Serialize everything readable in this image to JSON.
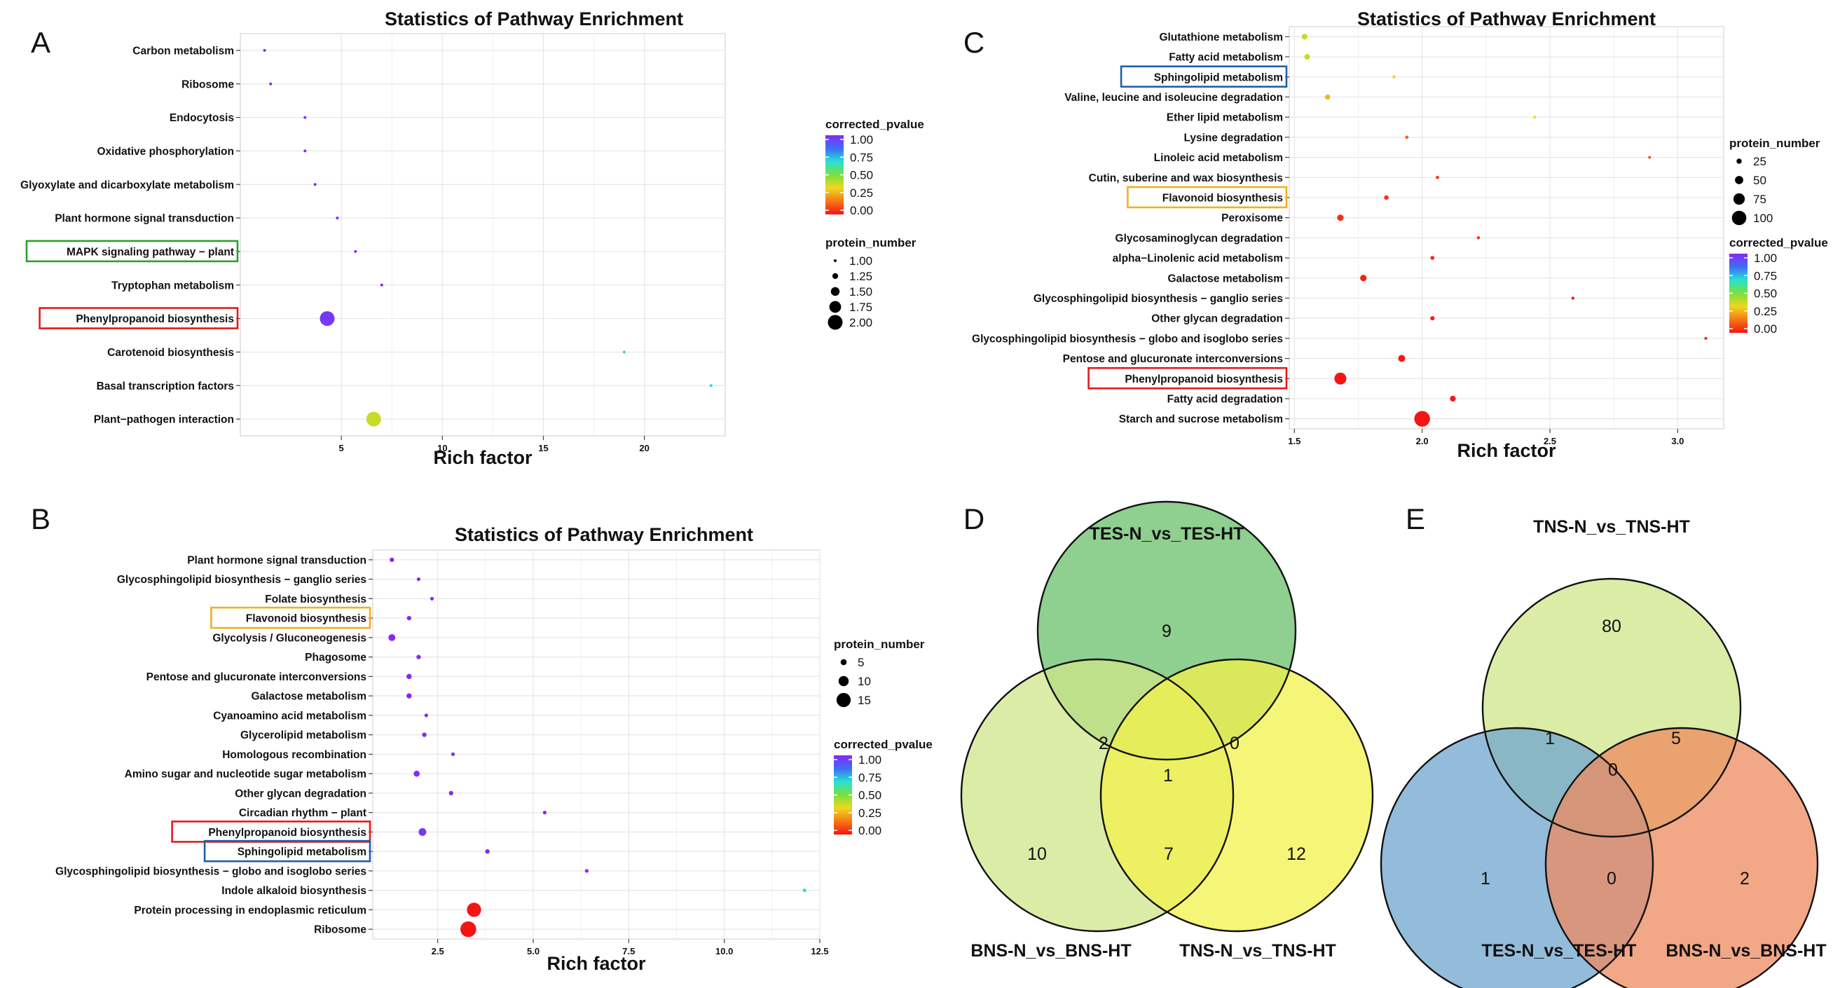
{
  "colors": {
    "grid": "#e6e6e6",
    "panel_border": "#cccccc",
    "green_box": "#2ca02c",
    "red_box": "#e31a1c",
    "orange_box": "#f2b01e",
    "blue_box": "#1f5fa8"
  },
  "chart_data": [
    {
      "id": "A",
      "panel_letter": "A",
      "type": "scatter",
      "title": "Statistics of Pathway Enrichment",
      "xlabel": "Rich factor",
      "xlim": [
        0,
        24
      ],
      "xticks": [
        5,
        10,
        15,
        20
      ],
      "categories": [
        "Carbon metabolism",
        "Ribosome",
        "Endocytosis",
        "Oxidative phosphorylation",
        "Glyoxylate and dicarboxylate metabolism",
        "Plant hormone signal transduction",
        "MAPK signaling pathway − plant",
        "Tryptophan metabolism",
        "Phenylpropanoid biosynthesis",
        "Carotenoid biosynthesis",
        "Basal transcription factors",
        "Plant−pathogen interaction"
      ],
      "points": [
        {
          "pathway": "Carbon metabolism",
          "rich_factor": 1.2,
          "protein_number": 1,
          "corrected_pvalue": 1.0
        },
        {
          "pathway": "Ribosome",
          "rich_factor": 1.5,
          "protein_number": 1,
          "corrected_pvalue": 1.0
        },
        {
          "pathway": "Endocytosis",
          "rich_factor": 3.2,
          "protein_number": 1,
          "corrected_pvalue": 1.0
        },
        {
          "pathway": "Oxidative phosphorylation",
          "rich_factor": 3.2,
          "protein_number": 1,
          "corrected_pvalue": 1.0
        },
        {
          "pathway": "Glyoxylate and dicarboxylate metabolism",
          "rich_factor": 3.7,
          "protein_number": 1,
          "corrected_pvalue": 1.0
        },
        {
          "pathway": "Plant hormone signal transduction",
          "rich_factor": 4.8,
          "protein_number": 1,
          "corrected_pvalue": 1.0
        },
        {
          "pathway": "MAPK signaling pathway − plant",
          "rich_factor": 5.7,
          "protein_number": 1,
          "corrected_pvalue": 1.0
        },
        {
          "pathway": "Tryptophan metabolism",
          "rich_factor": 7.0,
          "protein_number": 1,
          "corrected_pvalue": 1.0
        },
        {
          "pathway": "Phenylpropanoid biosynthesis",
          "rich_factor": 4.3,
          "protein_number": 2,
          "corrected_pvalue": 0.95
        },
        {
          "pathway": "Carotenoid biosynthesis",
          "rich_factor": 19.0,
          "protein_number": 1,
          "corrected_pvalue": 0.62
        },
        {
          "pathway": "Basal transcription factors",
          "rich_factor": 23.3,
          "protein_number": 1,
          "corrected_pvalue": 0.62
        },
        {
          "pathway": "Plant−pathogen interaction",
          "rich_factor": 6.6,
          "protein_number": 2,
          "corrected_pvalue": 0.35
        }
      ],
      "highlighted": [
        {
          "pathway": "MAPK signaling pathway − plant",
          "box_color": "green"
        },
        {
          "pathway": "Phenylpropanoid biosynthesis",
          "box_color": "red"
        }
      ],
      "size_legend": {
        "title": "protein_number",
        "values": [
          1.0,
          1.25,
          1.5,
          1.75,
          2.0
        ],
        "labels": [
          "1.00",
          "1.25",
          "1.50",
          "1.75",
          "2.00"
        ]
      },
      "color_legend": {
        "title": "corrected_pvalue",
        "ticks": [
          "1.00",
          "0.75",
          "0.50",
          "0.25",
          "0.00"
        ]
      }
    },
    {
      "id": "B",
      "panel_letter": "B",
      "type": "scatter",
      "title": "Statistics of Pathway Enrichment",
      "xlabel": "Rich factor",
      "xlim": [
        0.8,
        12.5
      ],
      "xticks": [
        2.5,
        5.0,
        7.5,
        10.0,
        12.5
      ],
      "tick_labels": [
        "2.5",
        "5.0",
        "7.5",
        "10.0",
        "12.5"
      ],
      "categories": [
        "Plant hormone signal transduction",
        "Glycosphingolipid biosynthesis − ganglio series",
        "Folate biosynthesis",
        "Flavonoid biosynthesis",
        "Glycolysis / Gluconeogenesis",
        "Phagosome",
        "Pentose and glucuronate interconversions",
        "Galactose metabolism",
        "Cyanoamino acid metabolism",
        "Glycerolipid metabolism",
        "Homologous recombination",
        "Amino sugar and nucleotide sugar metabolism",
        "Other glycan degradation",
        "Circadian rhythm − plant",
        "Phenylpropanoid biosynthesis",
        "Sphingolipid metabolism",
        "Glycosphingolipid biosynthesis − globo and isoglobo series",
        "Indole alkaloid biosynthesis",
        "Protein processing in endoplasmic reticulum",
        "Ribosome"
      ],
      "points": [
        {
          "pathway": "Plant hormone signal transduction",
          "rich_factor": 1.3,
          "protein_number": 3,
          "corrected_pvalue": 1.0
        },
        {
          "pathway": "Glycosphingolipid biosynthesis − ganglio series",
          "rich_factor": 2.0,
          "protein_number": 2,
          "corrected_pvalue": 1.0
        },
        {
          "pathway": "Folate biosynthesis",
          "rich_factor": 2.35,
          "protein_number": 2,
          "corrected_pvalue": 1.0
        },
        {
          "pathway": "Flavonoid biosynthesis",
          "rich_factor": 1.75,
          "protein_number": 3,
          "corrected_pvalue": 1.0
        },
        {
          "pathway": "Glycolysis / Gluconeogenesis",
          "rich_factor": 1.3,
          "protein_number": 6,
          "corrected_pvalue": 1.0
        },
        {
          "pathway": "Phagosome",
          "rich_factor": 2.0,
          "protein_number": 3,
          "corrected_pvalue": 1.0
        },
        {
          "pathway": "Pentose and glucuronate interconversions",
          "rich_factor": 1.75,
          "protein_number": 4,
          "corrected_pvalue": 1.0
        },
        {
          "pathway": "Galactose metabolism",
          "rich_factor": 1.75,
          "protein_number": 4,
          "corrected_pvalue": 1.0
        },
        {
          "pathway": "Cyanoamino acid metabolism",
          "rich_factor": 2.2,
          "protein_number": 2,
          "corrected_pvalue": 1.0
        },
        {
          "pathway": "Glycerolipid metabolism",
          "rich_factor": 2.15,
          "protein_number": 3,
          "corrected_pvalue": 1.0
        },
        {
          "pathway": "Homologous recombination",
          "rich_factor": 2.9,
          "protein_number": 2,
          "corrected_pvalue": 1.0
        },
        {
          "pathway": "Amino sugar and nucleotide sugar metabolism",
          "rich_factor": 1.95,
          "protein_number": 5,
          "corrected_pvalue": 1.0
        },
        {
          "pathway": "Other glycan degradation",
          "rich_factor": 2.85,
          "protein_number": 3,
          "corrected_pvalue": 1.0
        },
        {
          "pathway": "Circadian rhythm − plant",
          "rich_factor": 5.3,
          "protein_number": 2,
          "corrected_pvalue": 1.0
        },
        {
          "pathway": "Phenylpropanoid biosynthesis",
          "rich_factor": 2.1,
          "protein_number": 7,
          "corrected_pvalue": 0.97
        },
        {
          "pathway": "Sphingolipid metabolism",
          "rich_factor": 3.8,
          "protein_number": 3,
          "corrected_pvalue": 1.0
        },
        {
          "pathway": "Glycosphingolipid biosynthesis − globo and isoglobo series",
          "rich_factor": 6.4,
          "protein_number": 2,
          "corrected_pvalue": 1.0
        },
        {
          "pathway": "Indole alkaloid biosynthesis",
          "rich_factor": 12.1,
          "protein_number": 2,
          "corrected_pvalue": 0.6
        },
        {
          "pathway": "Protein processing in endoplasmic reticulum",
          "rich_factor": 3.45,
          "protein_number": 15,
          "corrected_pvalue": 0.0
        },
        {
          "pathway": "Ribosome",
          "rich_factor": 3.3,
          "protein_number": 17,
          "corrected_pvalue": 0.0
        }
      ],
      "highlighted": [
        {
          "pathway": "Flavonoid biosynthesis",
          "box_color": "orange"
        },
        {
          "pathway": "Phenylpropanoid biosynthesis",
          "box_color": "red"
        },
        {
          "pathway": "Sphingolipid metabolism",
          "box_color": "blue"
        }
      ],
      "size_legend": {
        "title": "protein_number",
        "values": [
          5,
          10,
          15
        ],
        "labels": [
          "5",
          "10",
          "15"
        ]
      },
      "color_legend": {
        "title": "corrected_pvalue",
        "ticks": [
          "1.00",
          "0.75",
          "0.50",
          "0.25",
          "0.00"
        ]
      }
    },
    {
      "id": "C",
      "panel_letter": "C",
      "type": "scatter",
      "title": "Statistics of Pathway Enrichment",
      "xlabel": "Rich factor",
      "xlim": [
        1.48,
        3.18
      ],
      "xticks": [
        1.5,
        2.0,
        2.5,
        3.0
      ],
      "tick_labels": [
        "1.5",
        "2.0",
        "2.5",
        "3.0"
      ],
      "categories": [
        "Glutathione metabolism",
        "Fatty acid metabolism",
        "Sphingolipid metabolism",
        "Valine, leucine and isoleucine degradation",
        "Ether lipid metabolism",
        "Lysine degradation",
        "Linoleic acid metabolism",
        "Cutin, suberine and wax biosynthesis",
        "Flavonoid biosynthesis",
        "Peroxisome",
        "Glycosaminoglycan degradation",
        "alpha−Linolenic acid metabolism",
        "Galactose metabolism",
        "Glycosphingolipid biosynthesis − ganglio series",
        "Other glycan degradation",
        "Glycosphingolipid biosynthesis − globo and isoglobo series",
        "Pentose and glucuronate interconversions",
        "Phenylpropanoid biosynthesis",
        "Fatty acid degradation",
        "Starch and sucrose metabolism"
      ],
      "points": [
        {
          "pathway": "Glutathione metabolism",
          "rich_factor": 1.54,
          "protein_number": 30,
          "corrected_pvalue": 0.35
        },
        {
          "pathway": "Fatty acid metabolism",
          "rich_factor": 1.55,
          "protein_number": 28,
          "corrected_pvalue": 0.35
        },
        {
          "pathway": "Sphingolipid metabolism",
          "rich_factor": 1.89,
          "protein_number": 10,
          "corrected_pvalue": 0.3
        },
        {
          "pathway": "Valine, leucine and isoleucine degradation",
          "rich_factor": 1.63,
          "protein_number": 25,
          "corrected_pvalue": 0.25
        },
        {
          "pathway": "Ether lipid metabolism",
          "rich_factor": 2.44,
          "protein_number": 6,
          "corrected_pvalue": 0.3
        },
        {
          "pathway": "Lysine degradation",
          "rich_factor": 1.94,
          "protein_number": 10,
          "corrected_pvalue": 0.12
        },
        {
          "pathway": "Linoleic acid metabolism",
          "rich_factor": 2.89,
          "protein_number": 5,
          "corrected_pvalue": 0.08
        },
        {
          "pathway": "Cutin, suberine and wax biosynthesis",
          "rich_factor": 2.06,
          "protein_number": 10,
          "corrected_pvalue": 0.06
        },
        {
          "pathway": "Flavonoid biosynthesis",
          "rich_factor": 1.86,
          "protein_number": 20,
          "corrected_pvalue": 0.05
        },
        {
          "pathway": "Peroxisome",
          "rich_factor": 1.68,
          "protein_number": 35,
          "corrected_pvalue": 0.04
        },
        {
          "pathway": "Glycosaminoglycan degradation",
          "rich_factor": 2.22,
          "protein_number": 8,
          "corrected_pvalue": 0.04
        },
        {
          "pathway": "alpha−Linolenic acid metabolism",
          "rich_factor": 2.04,
          "protein_number": 15,
          "corrected_pvalue": 0.03
        },
        {
          "pathway": "Galactose metabolism",
          "rich_factor": 1.77,
          "protein_number": 35,
          "corrected_pvalue": 0.02
        },
        {
          "pathway": "Glycosphingolipid biosynthesis − ganglio series",
          "rich_factor": 2.59,
          "protein_number": 8,
          "corrected_pvalue": 0.02
        },
        {
          "pathway": "Other glycan degradation",
          "rich_factor": 2.04,
          "protein_number": 18,
          "corrected_pvalue": 0.02
        },
        {
          "pathway": "Glycosphingolipid biosynthesis − globo and isoglobo series",
          "rich_factor": 3.11,
          "protein_number": 6,
          "corrected_pvalue": 0.02
        },
        {
          "pathway": "Pentose and glucuronate interconversions",
          "rich_factor": 1.92,
          "protein_number": 40,
          "corrected_pvalue": 0.01
        },
        {
          "pathway": "Phenylpropanoid biosynthesis",
          "rich_factor": 1.68,
          "protein_number": 80,
          "corrected_pvalue": 0.0
        },
        {
          "pathway": "Fatty acid degradation",
          "rich_factor": 2.12,
          "protein_number": 30,
          "corrected_pvalue": 0.01
        },
        {
          "pathway": "Starch and sucrose metabolism",
          "rich_factor": 2.0,
          "protein_number": 110,
          "corrected_pvalue": 0.0
        }
      ],
      "highlighted": [
        {
          "pathway": "Sphingolipid metabolism",
          "box_color": "blue"
        },
        {
          "pathway": "Flavonoid biosynthesis",
          "box_color": "orange"
        },
        {
          "pathway": "Phenylpropanoid biosynthesis",
          "box_color": "red"
        }
      ],
      "size_legend": {
        "title": "protein_number",
        "values": [
          25,
          50,
          75,
          100
        ],
        "labels": [
          "25",
          "50",
          "75",
          "100"
        ]
      },
      "color_legend": {
        "title": "corrected_pvalue",
        "ticks": [
          "1.00",
          "0.75",
          "0.50",
          "0.25",
          "0.00"
        ]
      }
    },
    {
      "id": "D",
      "panel_letter": "D",
      "type": "venn",
      "sets": [
        "TES-N_vs_TES-HT",
        "BNS-N_vs_BNS-HT",
        "TNS-N_vs_TNS-HT"
      ],
      "regions": {
        "top_only": 9,
        "left_only": 10,
        "right_only": 12,
        "top_left": 2,
        "top_right": 0,
        "left_right": 7,
        "all": 1
      }
    },
    {
      "id": "E",
      "panel_letter": "E",
      "type": "venn",
      "sets": [
        "TNS-N_vs_TNS-HT",
        "TES-N_vs_TES-HT",
        "BNS-N_vs_BNS-HT"
      ],
      "regions": {
        "top_only": 80,
        "left_only": 1,
        "right_only": 2,
        "top_left": 1,
        "top_right": 5,
        "left_right": 0,
        "all": 0
      }
    }
  ]
}
